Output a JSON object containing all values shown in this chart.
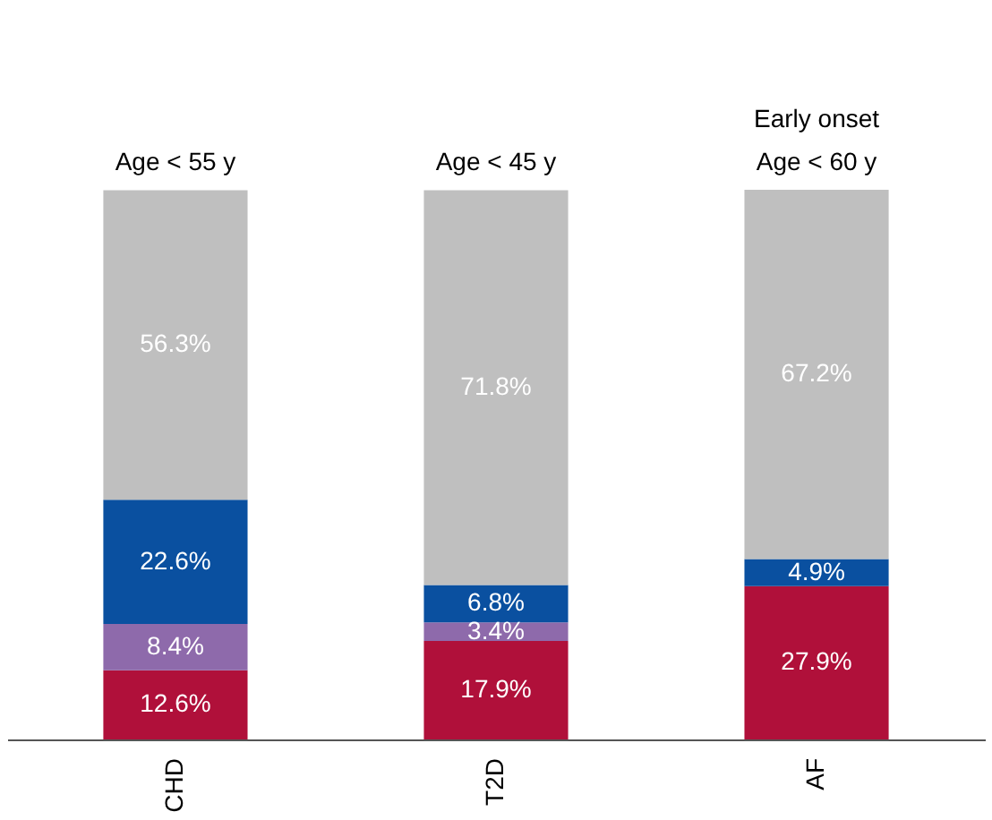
{
  "chart_data": {
    "type": "bar",
    "stacked": true,
    "categories": [
      "CHD",
      "T2D",
      "AF"
    ],
    "series": [
      {
        "color": "#b0103a",
        "values": [
          12.6,
          17.9,
          27.9
        ],
        "value_labels": [
          "12.6%",
          "17.9%",
          "27.9%"
        ]
      },
      {
        "color": "#8e6aab",
        "values": [
          8.4,
          3.4,
          null
        ],
        "value_labels": [
          "8.4%",
          "3.4%",
          null
        ]
      },
      {
        "color": "#0a50a0",
        "values": [
          22.6,
          6.8,
          4.9
        ],
        "value_labels": [
          "22.6%",
          "6.8%",
          "4.9%"
        ]
      },
      {
        "color": "#bfbfbf",
        "values": [
          56.3,
          71.8,
          67.2
        ],
        "value_labels": [
          "56.3%",
          "71.8%",
          "67.2%"
        ]
      }
    ],
    "ylim": [
      0,
      100
    ],
    "tick_labels": "x",
    "grid": false,
    "annotations": [
      {
        "text": "Age < 55 y",
        "x": "CHD",
        "y": 100
      },
      {
        "text": "Age < 45 y",
        "x": "T2D",
        "y": 100
      },
      {
        "text": "Age < 60 y",
        "x": "AF",
        "y": 100
      },
      {
        "text": "Early onset",
        "x": "AF",
        "y": 100
      }
    ]
  }
}
